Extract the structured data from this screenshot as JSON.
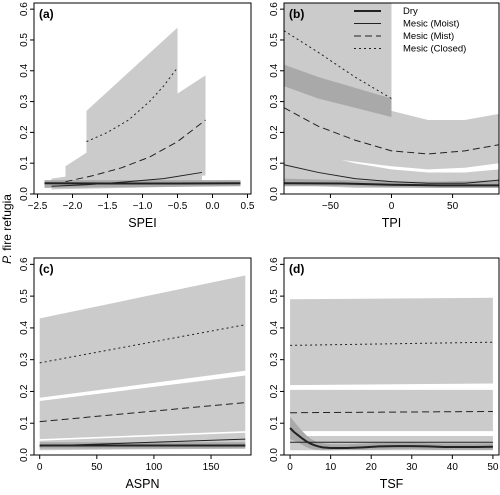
{
  "figure": {
    "ylabel_species": "P.",
    "ylabel_rest": " fire refugia"
  },
  "legend": {
    "entries": [
      {
        "label": "Dry",
        "dash": "solid",
        "width": 2
      },
      {
        "label": "Mesic (Moist)",
        "dash": "solid",
        "width": 1
      },
      {
        "label": "Mesic (Mist)",
        "dash": "dashed",
        "width": 1
      },
      {
        "label": "Mesic (Closed)",
        "dash": "dotted",
        "width": 1
      }
    ]
  },
  "chart_data": [
    {
      "panel": "(a)",
      "type": "line",
      "xlabel": "SPEI",
      "xlim": [
        -2.55,
        0.55
      ],
      "ylim": [
        0,
        0.62
      ],
      "xticks": [
        -2.5,
        -2.0,
        -1.5,
        -1.0,
        -0.5,
        0.0,
        0.5
      ],
      "xticklabels": [
        "−2.5",
        "−2.0",
        "−1.5",
        "−1.0",
        "−0.5",
        "0.0",
        "0.5"
      ],
      "yticks": [
        0,
        0.1,
        0.2,
        0.3,
        0.4,
        0.5,
        0.6
      ],
      "yticklabels": [
        "0.0",
        "0.1",
        "0.2",
        "0.3",
        "0.4",
        "0.5",
        "0.6"
      ],
      "bands": [
        {
          "x": [
            -1.8,
            -0.5
          ],
          "lo": [
            0.06,
            0.08
          ],
          "hi": [
            0.27,
            0.54
          ],
          "shade": "light"
        },
        {
          "x": [
            -2.1,
            -0.1
          ],
          "lo": [
            0.025,
            0.06
          ],
          "hi": [
            0.09,
            0.385
          ],
          "shade": "light"
        },
        {
          "x": [
            -2.3,
            -0.15
          ],
          "lo": [
            0.015,
            0.025
          ],
          "hi": [
            0.05,
            0.12
          ],
          "shade": "light"
        },
        {
          "x": [
            -2.4,
            0.4
          ],
          "lo": [
            0.02,
            0.025
          ],
          "hi": [
            0.045,
            0.045
          ],
          "shade": "dark"
        }
      ],
      "series": [
        {
          "name": "Mesic (Closed)",
          "dash": "dotted",
          "width": 1,
          "x": [
            -1.8,
            -1.5,
            -1.2,
            -0.9,
            -0.7,
            -0.5
          ],
          "y": [
            0.17,
            0.2,
            0.24,
            0.3,
            0.35,
            0.41
          ]
        },
        {
          "name": "Mesic (Mist)",
          "dash": "dashed",
          "width": 1,
          "x": [
            -2.1,
            -1.7,
            -1.3,
            -0.9,
            -0.5,
            -0.1
          ],
          "y": [
            0.04,
            0.06,
            0.085,
            0.12,
            0.17,
            0.24
          ]
        },
        {
          "name": "Mesic (Moist)",
          "dash": "solid",
          "width": 1,
          "x": [
            -2.3,
            -1.8,
            -1.2,
            -0.7,
            -0.15
          ],
          "y": [
            0.025,
            0.03,
            0.04,
            0.05,
            0.07
          ]
        },
        {
          "name": "Dry",
          "dash": "solid",
          "width": 2,
          "x": [
            -2.4,
            -1.5,
            -0.5,
            0.4
          ],
          "y": [
            0.035,
            0.034,
            0.034,
            0.035
          ]
        }
      ]
    },
    {
      "panel": "(b)",
      "type": "line",
      "xlabel": "TPI",
      "xlim": [
        -88,
        88
      ],
      "ylim": [
        0,
        0.62
      ],
      "xticks": [
        -50,
        0,
        50
      ],
      "xticklabels": [
        "−50",
        "0",
        "50"
      ],
      "yticks": [
        0,
        0.1,
        0.2,
        0.3,
        0.4,
        0.5,
        0.6
      ],
      "yticklabels": [
        "0.0",
        "0.1",
        "0.2",
        "0.3",
        "0.4",
        "0.5",
        "0.6"
      ],
      "bands": [
        {
          "x": [
            -88,
            -60,
            -30,
            0
          ],
          "lo": [
            0.4,
            0.33,
            0.26,
            0.18
          ],
          "hi": [
            0.62,
            0.62,
            0.62,
            0.62
          ],
          "shade": "light"
        },
        {
          "x": [
            -88,
            -60,
            -30,
            0,
            30,
            60,
            88
          ],
          "lo": [
            0.13,
            0.12,
            0.105,
            0.09,
            0.08,
            0.085,
            0.1
          ],
          "hi": [
            0.52,
            0.4,
            0.32,
            0.27,
            0.24,
            0.24,
            0.26
          ],
          "shade": "light"
        },
        {
          "x": [
            -88,
            -60,
            -30,
            0,
            30,
            60,
            88
          ],
          "lo": [
            0.03,
            0.025,
            0.02,
            0.02,
            0.02,
            0.02,
            0.02
          ],
          "hi": [
            0.17,
            0.13,
            0.1,
            0.08,
            0.07,
            0.07,
            0.08
          ],
          "shade": "light"
        },
        {
          "x": [
            -88,
            -60,
            -30,
            0
          ],
          "lo": [
            0.35,
            0.31,
            0.28,
            0.25
          ],
          "hi": [
            0.42,
            0.38,
            0.345,
            0.31
          ],
          "shade": "dark"
        },
        {
          "x": [
            -88,
            -40,
            0,
            40,
            88
          ],
          "lo": [
            0.025,
            0.025,
            0.022,
            0.02,
            0.02
          ],
          "hi": [
            0.05,
            0.045,
            0.04,
            0.04,
            0.045
          ],
          "shade": "dark"
        }
      ],
      "series": [
        {
          "name": "Mesic (Closed)",
          "dash": "dotted",
          "width": 1,
          "x": [
            -88,
            -60,
            -30,
            0
          ],
          "y": [
            0.53,
            0.46,
            0.38,
            0.31
          ]
        },
        {
          "name": "Mesic (Mist)",
          "dash": "dashed",
          "width": 1,
          "x": [
            -88,
            -60,
            -30,
            0,
            30,
            60,
            88
          ],
          "y": [
            0.28,
            0.22,
            0.175,
            0.14,
            0.13,
            0.14,
            0.16
          ]
        },
        {
          "name": "Mesic (Moist)",
          "dash": "solid",
          "width": 1,
          "x": [
            -88,
            -60,
            -30,
            0,
            30,
            60,
            88
          ],
          "y": [
            0.095,
            0.07,
            0.05,
            0.04,
            0.035,
            0.035,
            0.045
          ]
        },
        {
          "name": "Dry",
          "dash": "solid",
          "width": 2,
          "x": [
            -88,
            -40,
            0,
            40,
            88
          ],
          "y": [
            0.035,
            0.034,
            0.03,
            0.028,
            0.028
          ]
        }
      ]
    },
    {
      "panel": "(c)",
      "type": "line",
      "xlabel": "ASPN",
      "xlim": [
        -5,
        185
      ],
      "ylim": [
        0,
        0.62
      ],
      "xticks": [
        0,
        50,
        100,
        150
      ],
      "xticklabels": [
        "0",
        "50",
        "100",
        "150"
      ],
      "yticks": [
        0,
        0.1,
        0.2,
        0.3,
        0.4,
        0.5,
        0.6
      ],
      "yticklabels": [
        "0.0",
        "0.1",
        "0.2",
        "0.3",
        "0.4",
        "0.5",
        "0.6"
      ],
      "bands": [
        {
          "x": [
            0,
            180
          ],
          "lo": [
            0.18,
            0.265
          ],
          "hi": [
            0.43,
            0.565
          ],
          "shade": "light"
        },
        {
          "x": [
            0,
            180
          ],
          "lo": [
            0.05,
            0.075
          ],
          "hi": [
            0.17,
            0.25
          ],
          "shade": "light"
        },
        {
          "x": [
            0,
            180
          ],
          "lo": [
            0.015,
            0.02
          ],
          "hi": [
            0.045,
            0.07
          ],
          "shade": "light"
        },
        {
          "x": [
            0,
            180
          ],
          "lo": [
            0.02,
            0.02
          ],
          "hi": [
            0.04,
            0.04
          ],
          "shade": "dark"
        }
      ],
      "series": [
        {
          "name": "Mesic (Closed)",
          "dash": "dotted",
          "width": 1,
          "x": [
            0,
            180
          ],
          "y": [
            0.29,
            0.41
          ]
        },
        {
          "name": "Mesic (Mist)",
          "dash": "dashed",
          "width": 1,
          "x": [
            0,
            180
          ],
          "y": [
            0.105,
            0.165
          ]
        },
        {
          "name": "Mesic (Moist)",
          "dash": "solid",
          "width": 1,
          "x": [
            0,
            180
          ],
          "y": [
            0.028,
            0.05
          ]
        },
        {
          "name": "Dry",
          "dash": "solid",
          "width": 2,
          "x": [
            0,
            180
          ],
          "y": [
            0.03,
            0.03
          ]
        }
      ]
    },
    {
      "panel": "(d)",
      "type": "line",
      "xlabel": "TSF",
      "xlim": [
        -1.5,
        51.5
      ],
      "ylim": [
        0,
        0.62
      ],
      "xticks": [
        0,
        10,
        20,
        30,
        40,
        50
      ],
      "xticklabels": [
        "0",
        "10",
        "20",
        "30",
        "40",
        "50"
      ],
      "yticks": [
        0,
        0.1,
        0.2,
        0.3,
        0.4,
        0.5,
        0.6
      ],
      "yticklabels": [
        "0.0",
        "0.1",
        "0.2",
        "0.3",
        "0.4",
        "0.5",
        "0.6"
      ],
      "bands": [
        {
          "x": [
            0,
            50
          ],
          "lo": [
            0.22,
            0.225
          ],
          "hi": [
            0.49,
            0.495
          ],
          "shade": "light"
        },
        {
          "x": [
            0,
            50
          ],
          "lo": [
            0.075,
            0.075
          ],
          "hi": [
            0.205,
            0.205
          ],
          "shade": "light"
        },
        {
          "x": [
            0,
            50
          ],
          "lo": [
            0.015,
            0.015
          ],
          "hi": [
            0.06,
            0.06
          ],
          "shade": "light"
        },
        {
          "x": [
            0,
            1,
            2,
            3,
            4,
            5,
            6,
            7,
            8,
            10,
            14,
            18,
            22,
            26,
            30,
            34,
            38,
            42,
            46,
            50
          ],
          "lo": [
            0.05,
            0.045,
            0.04,
            0.032,
            0.025,
            0.02,
            0.017,
            0.016,
            0.015,
            0.015,
            0.016,
            0.016,
            0.017,
            0.018,
            0.018,
            0.017,
            0.016,
            0.016,
            0.016,
            0.016
          ],
          "hi": [
            0.12,
            0.105,
            0.09,
            0.075,
            0.062,
            0.052,
            0.045,
            0.04,
            0.037,
            0.034,
            0.034,
            0.036,
            0.038,
            0.039,
            0.039,
            0.037,
            0.036,
            0.036,
            0.036,
            0.037
          ],
          "shade": "dark"
        }
      ],
      "series": [
        {
          "name": "Mesic (Closed)",
          "dash": "dotted",
          "width": 1,
          "x": [
            0,
            50
          ],
          "y": [
            0.345,
            0.355
          ]
        },
        {
          "name": "Mesic (Mist)",
          "dash": "dashed",
          "width": 1,
          "x": [
            0,
            50
          ],
          "y": [
            0.133,
            0.137
          ]
        },
        {
          "name": "Mesic (Moist)",
          "dash": "solid",
          "width": 1,
          "x": [
            0,
            50
          ],
          "y": [
            0.04,
            0.04
          ]
        },
        {
          "name": "Dry",
          "dash": "solid",
          "width": 2,
          "x": [
            0,
            1,
            2,
            3,
            4,
            5,
            6,
            7,
            8,
            10,
            14,
            18,
            22,
            26,
            30,
            34,
            38,
            42,
            46,
            50
          ],
          "y": [
            0.085,
            0.072,
            0.062,
            0.052,
            0.043,
            0.036,
            0.031,
            0.027,
            0.024,
            0.022,
            0.022,
            0.024,
            0.027,
            0.028,
            0.028,
            0.027,
            0.025,
            0.025,
            0.025,
            0.026
          ]
        }
      ]
    }
  ]
}
